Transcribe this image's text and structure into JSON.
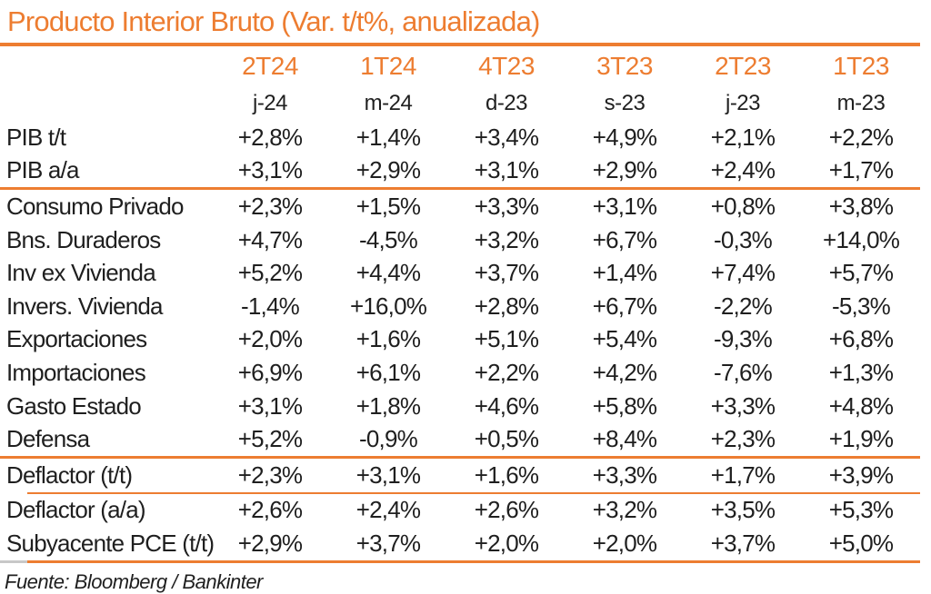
{
  "title": "Producto Interior Bruto (Var. t/t%, anualizada)",
  "colors": {
    "accent_orange": "#ED7D31",
    "text_black": "#1F1F1F",
    "divider_gray": "#C8C8C8"
  },
  "footer": {
    "source_label": "Fuente: Bloomberg / Bankinter"
  },
  "chart_data": {
    "type": "table",
    "title": "Producto Interior Bruto (Var. t/t%, anualizada)",
    "quarter_headers": [
      "2T24",
      "1T24",
      "4T23",
      "3T23",
      "2T23",
      "1T23"
    ],
    "month_headers": [
      "j-24",
      "m-24",
      "d-23",
      "s-23",
      "j-23",
      "m-23"
    ],
    "sections": [
      {
        "rows": [
          {
            "label": "PIB t/t",
            "values": [
              "+2,8%",
              "+1,4%",
              "+3,4%",
              "+4,9%",
              "+2,1%",
              "+2,2%"
            ]
          },
          {
            "label": "PIB a/a",
            "values": [
              "+3,1%",
              "+2,9%",
              "+3,1%",
              "+2,9%",
              "+2,4%",
              "+1,7%"
            ]
          }
        ]
      },
      {
        "rows": [
          {
            "label": "Consumo Privado",
            "values": [
              "+2,3%",
              "+1,5%",
              "+3,3%",
              "+3,1%",
              "+0,8%",
              "+3,8%"
            ]
          },
          {
            "label": "Bns. Duraderos",
            "values": [
              "+4,7%",
              "-4,5%",
              "+3,2%",
              "+6,7%",
              "-0,3%",
              "+14,0%"
            ]
          },
          {
            "label": "Inv ex Vivienda",
            "values": [
              "+5,2%",
              "+4,4%",
              "+3,7%",
              "+1,4%",
              "+7,4%",
              "+5,7%"
            ]
          },
          {
            "label": "Invers. Vivienda",
            "values": [
              "-1,4%",
              "+16,0%",
              "+2,8%",
              "+6,7%",
              "-2,2%",
              "-5,3%"
            ]
          },
          {
            "label": "Exportaciones",
            "values": [
              "+2,0%",
              "+1,6%",
              "+5,1%",
              "+5,4%",
              "-9,3%",
              "+6,8%"
            ]
          },
          {
            "label": "Importaciones",
            "values": [
              "+6,9%",
              "+6,1%",
              "+2,2%",
              "+4,2%",
              "-7,6%",
              "+1,3%"
            ]
          },
          {
            "label": "Gasto Estado",
            "values": [
              "+3,1%",
              "+1,8%",
              "+4,6%",
              "+5,8%",
              "+3,3%",
              "+4,8%"
            ]
          },
          {
            "label": "Defensa",
            "values": [
              "+5,2%",
              "-0,9%",
              "+0,5%",
              "+8,4%",
              "+2,3%",
              "+1,9%"
            ]
          }
        ]
      },
      {
        "rows": [
          {
            "label": "Deflactor (t/t)",
            "values": [
              "+2,3%",
              "+3,1%",
              "+1,6%",
              "+3,3%",
              "+1,7%",
              "+3,9%"
            ]
          }
        ]
      },
      {
        "rows": [
          {
            "label": "Deflactor (a/a)",
            "values": [
              "+2,6%",
              "+2,4%",
              "+2,6%",
              "+3,2%",
              "+3,5%",
              "+5,3%"
            ]
          },
          {
            "label": "Subyacente PCE (t/t)",
            "values": [
              "+2,9%",
              "+3,7%",
              "+2,0%",
              "+2,0%",
              "+3,7%",
              "+5,0%"
            ]
          }
        ]
      }
    ],
    "source": "Fuente: Bloomberg / Bankinter"
  }
}
